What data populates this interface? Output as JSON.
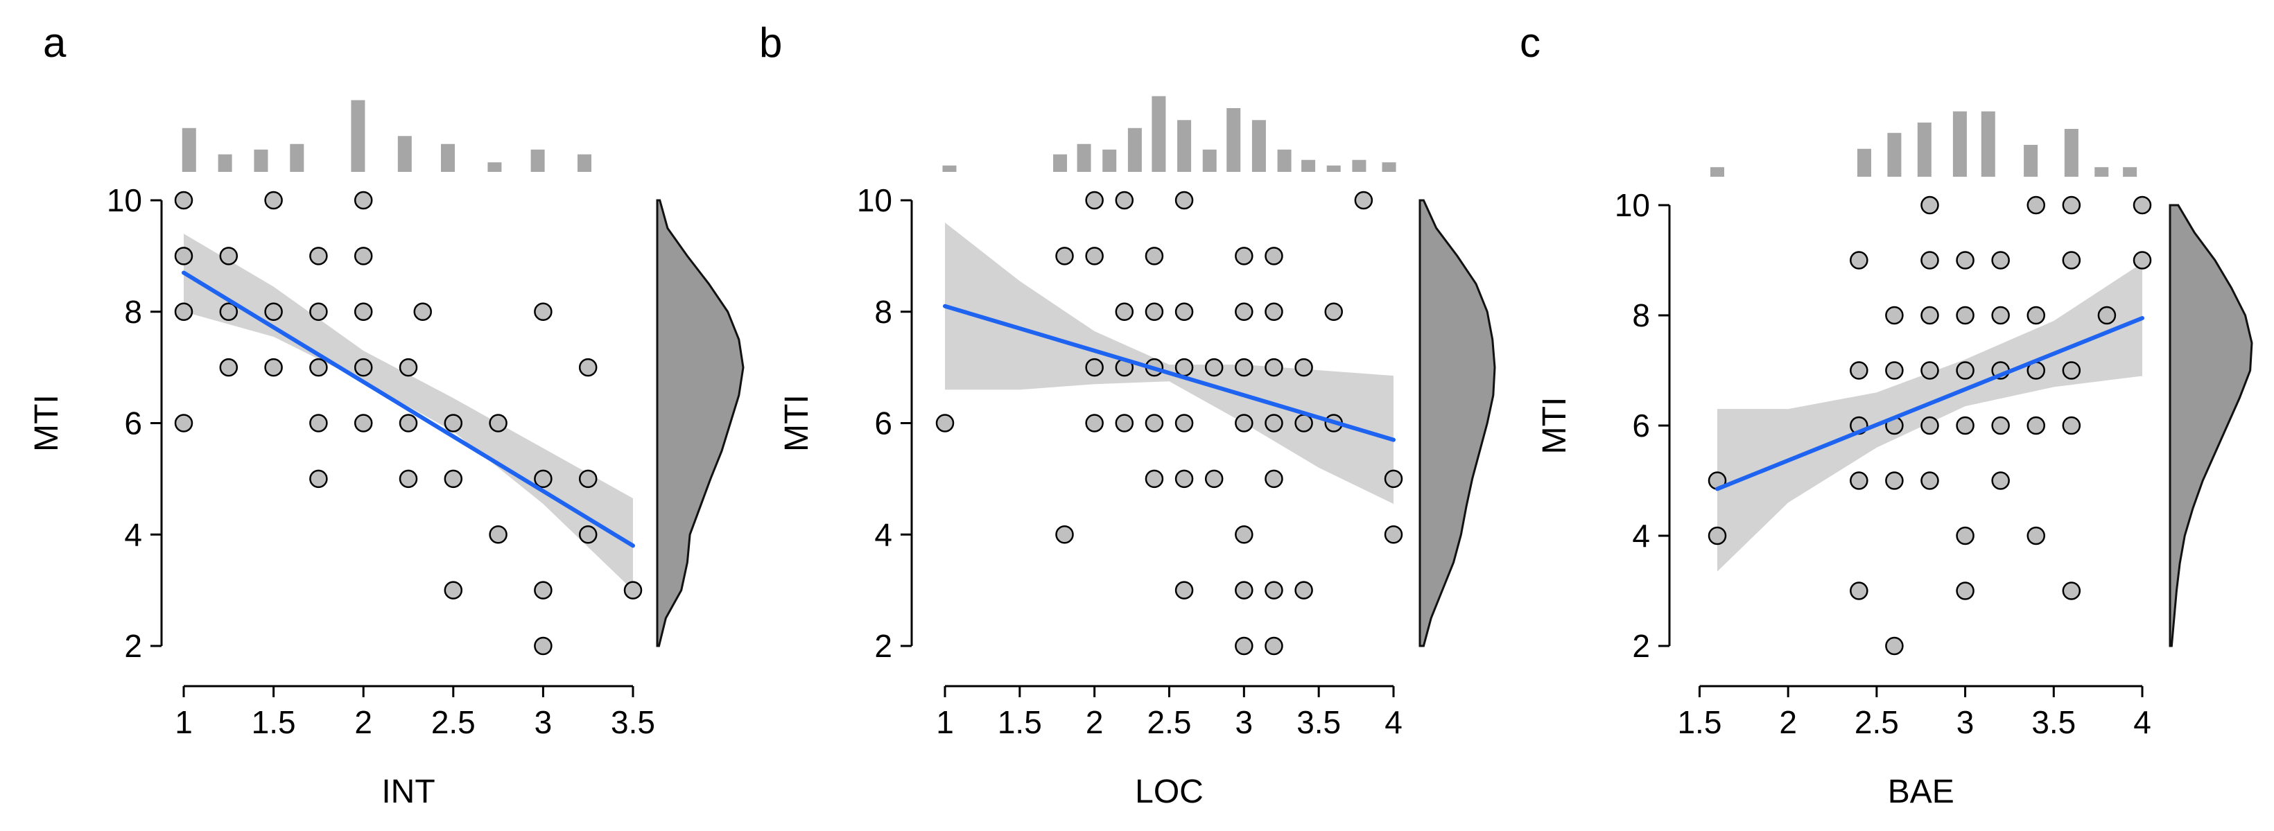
{
  "chart_data": [
    {
      "type": "scatter",
      "panel_label": "a",
      "xlabel": "INT",
      "ylabel": "MTI",
      "xlim": [
        1,
        3.5
      ],
      "ylim": [
        2,
        10
      ],
      "xticks": [
        1,
        1.5,
        2,
        2.5,
        3,
        3.5
      ],
      "xtick_labels": [
        "1",
        "1.5",
        "2",
        "2.5",
        "3",
        "3.5"
      ],
      "yticks": [
        2,
        4,
        6,
        8,
        10
      ],
      "ytick_labels": [
        "2",
        "4",
        "6",
        "8",
        "10"
      ],
      "points": [
        [
          1,
          10
        ],
        [
          1,
          9
        ],
        [
          1,
          8
        ],
        [
          1,
          6
        ],
        [
          1.25,
          9
        ],
        [
          1.25,
          8
        ],
        [
          1.25,
          7
        ],
        [
          1.5,
          10
        ],
        [
          1.5,
          8
        ],
        [
          1.5,
          7
        ],
        [
          1.75,
          9
        ],
        [
          1.75,
          8
        ],
        [
          1.75,
          7
        ],
        [
          1.75,
          6
        ],
        [
          1.75,
          5
        ],
        [
          2,
          10
        ],
        [
          2,
          9
        ],
        [
          2,
          8
        ],
        [
          2,
          7
        ],
        [
          2,
          6
        ],
        [
          2.25,
          7
        ],
        [
          2.25,
          6
        ],
        [
          2.25,
          5
        ],
        [
          2.33,
          8
        ],
        [
          2.5,
          6
        ],
        [
          2.5,
          5
        ],
        [
          2.5,
          3
        ],
        [
          2.75,
          6
        ],
        [
          2.75,
          4
        ],
        [
          3,
          8
        ],
        [
          3,
          5
        ],
        [
          3,
          3
        ],
        [
          3,
          2
        ],
        [
          3.25,
          7
        ],
        [
          3.25,
          5
        ],
        [
          3.25,
          4
        ],
        [
          3.5,
          3
        ]
      ],
      "fit": {
        "x0": 1,
        "y0": 8.7,
        "x1": 3.5,
        "y1": 3.8
      },
      "ci_band": {
        "x": [
          1,
          1.5,
          2,
          2.5,
          3,
          3.5
        ],
        "lower": [
          8.0,
          7.55,
          6.75,
          5.85,
          4.55,
          3.0
        ],
        "upper": [
          9.4,
          8.45,
          7.3,
          6.45,
          5.55,
          4.65
        ]
      },
      "top_hist": {
        "centers": [
          1.03,
          1.23,
          1.43,
          1.63,
          1.97,
          2.23,
          2.47,
          2.73,
          2.97,
          3.23
        ],
        "heights": [
          0.55,
          0.22,
          0.28,
          0.35,
          0.9,
          0.45,
          0.35,
          0.12,
          0.28,
          0.22
        ]
      },
      "right_density": {
        "y": [
          2,
          2.5,
          3,
          3.5,
          4,
          4.5,
          5,
          5.5,
          6,
          6.5,
          7,
          7.5,
          8,
          8.5,
          9,
          9.5,
          10
        ],
        "d": [
          0.02,
          0.1,
          0.28,
          0.35,
          0.38,
          0.5,
          0.62,
          0.75,
          0.85,
          0.95,
          1.0,
          0.95,
          0.82,
          0.6,
          0.35,
          0.12,
          0.03
        ]
      }
    },
    {
      "type": "scatter",
      "panel_label": "b",
      "xlabel": "LOC",
      "ylabel": "MTI",
      "xlim": [
        1,
        4
      ],
      "ylim": [
        2,
        10
      ],
      "xticks": [
        1,
        1.5,
        2,
        2.5,
        3,
        3.5,
        4
      ],
      "xtick_labels": [
        "1",
        "1.5",
        "2",
        "2.5",
        "3",
        "3.5",
        "4"
      ],
      "yticks": [
        2,
        4,
        6,
        8,
        10
      ],
      "ytick_labels": [
        "2",
        "4",
        "6",
        "8",
        "10"
      ],
      "points": [
        [
          1,
          6
        ],
        [
          1.8,
          9
        ],
        [
          1.8,
          4
        ],
        [
          2,
          10
        ],
        [
          2,
          9
        ],
        [
          2,
          7
        ],
        [
          2,
          6
        ],
        [
          2.2,
          10
        ],
        [
          2.2,
          8
        ],
        [
          2.2,
          7
        ],
        [
          2.2,
          6
        ],
        [
          2.4,
          9
        ],
        [
          2.4,
          8
        ],
        [
          2.4,
          7
        ],
        [
          2.4,
          6
        ],
        [
          2.4,
          5
        ],
        [
          2.6,
          10
        ],
        [
          2.6,
          8
        ],
        [
          2.6,
          7
        ],
        [
          2.6,
          6
        ],
        [
          2.6,
          5
        ],
        [
          2.6,
          3
        ],
        [
          2.8,
          7
        ],
        [
          2.8,
          5
        ],
        [
          3,
          9
        ],
        [
          3,
          8
        ],
        [
          3,
          7
        ],
        [
          3,
          6
        ],
        [
          3,
          4
        ],
        [
          3,
          3
        ],
        [
          3,
          2
        ],
        [
          3.2,
          9
        ],
        [
          3.2,
          8
        ],
        [
          3.2,
          7
        ],
        [
          3.2,
          6
        ],
        [
          3.2,
          5
        ],
        [
          3.2,
          3
        ],
        [
          3.2,
          2
        ],
        [
          3.4,
          7
        ],
        [
          3.4,
          6
        ],
        [
          3.4,
          3
        ],
        [
          3.6,
          8
        ],
        [
          3.6,
          6
        ],
        [
          3.8,
          10
        ],
        [
          4,
          5
        ],
        [
          4,
          4
        ]
      ],
      "fit": {
        "x0": 1,
        "y0": 8.1,
        "x1": 4,
        "y1": 5.7
      },
      "ci_band": {
        "x": [
          1,
          1.5,
          2,
          2.5,
          3,
          3.5,
          4
        ],
        "lower": [
          6.6,
          6.6,
          6.7,
          6.75,
          6.0,
          5.2,
          4.55
        ],
        "upper": [
          9.6,
          8.55,
          7.65,
          7.05,
          7.05,
          6.95,
          6.85
        ]
      },
      "top_hist": {
        "centers": [
          1.03,
          1.77,
          1.93,
          2.1,
          2.27,
          2.43,
          2.6,
          2.77,
          2.93,
          3.1,
          3.27,
          3.43,
          3.6,
          3.77,
          3.97
        ],
        "heights": [
          0.08,
          0.22,
          0.35,
          0.28,
          0.55,
          0.95,
          0.65,
          0.28,
          0.8,
          0.65,
          0.28,
          0.15,
          0.08,
          0.15,
          0.12
        ]
      },
      "right_density": {
        "y": [
          2,
          2.5,
          3,
          3.5,
          4,
          4.5,
          5,
          5.5,
          6,
          6.5,
          7,
          7.5,
          8,
          8.5,
          9,
          9.5,
          10
        ],
        "d": [
          0.05,
          0.15,
          0.3,
          0.45,
          0.55,
          0.62,
          0.7,
          0.8,
          0.9,
          0.98,
          1.0,
          0.97,
          0.9,
          0.75,
          0.5,
          0.22,
          0.05
        ]
      }
    },
    {
      "type": "scatter",
      "panel_label": "c",
      "xlabel": "BAE",
      "ylabel": "MTI",
      "xlim": [
        1.6,
        4
      ],
      "ylim": [
        2,
        10
      ],
      "xticks": [
        1.5,
        2,
        2.5,
        3,
        3.5,
        4
      ],
      "xtick_labels": [
        "1.5",
        "2",
        "2.5",
        "3",
        "3.5",
        "4"
      ],
      "yticks": [
        2,
        4,
        6,
        8,
        10
      ],
      "ytick_labels": [
        "2",
        "4",
        "6",
        "8",
        "10"
      ],
      "points": [
        [
          1.6,
          5
        ],
        [
          1.6,
          4
        ],
        [
          2.4,
          9
        ],
        [
          2.4,
          7
        ],
        [
          2.4,
          6
        ],
        [
          2.4,
          5
        ],
        [
          2.4,
          3
        ],
        [
          2.6,
          8
        ],
        [
          2.6,
          7
        ],
        [
          2.6,
          6
        ],
        [
          2.6,
          5
        ],
        [
          2.6,
          2
        ],
        [
          2.8,
          10
        ],
        [
          2.8,
          9
        ],
        [
          2.8,
          8
        ],
        [
          2.8,
          7
        ],
        [
          2.8,
          6
        ],
        [
          2.8,
          5
        ],
        [
          3,
          9
        ],
        [
          3,
          8
        ],
        [
          3,
          7
        ],
        [
          3,
          6
        ],
        [
          3,
          4
        ],
        [
          3,
          3
        ],
        [
          3.2,
          9
        ],
        [
          3.2,
          8
        ],
        [
          3.2,
          7
        ],
        [
          3.2,
          6
        ],
        [
          3.2,
          5
        ],
        [
          3.4,
          10
        ],
        [
          3.4,
          8
        ],
        [
          3.4,
          7
        ],
        [
          3.4,
          6
        ],
        [
          3.4,
          4
        ],
        [
          3.6,
          10
        ],
        [
          3.6,
          9
        ],
        [
          3.6,
          7
        ],
        [
          3.6,
          6
        ],
        [
          3.6,
          3
        ],
        [
          3.8,
          8
        ],
        [
          4,
          10
        ],
        [
          4,
          9
        ]
      ],
      "fit": {
        "x0": 1.6,
        "y0": 4.85,
        "x1": 4,
        "y1": 7.95
      },
      "ci_band": {
        "x": [
          1.6,
          2,
          2.5,
          3,
          3.5,
          4
        ],
        "lower": [
          3.35,
          4.6,
          5.6,
          6.35,
          6.7,
          6.9
        ],
        "upper": [
          6.3,
          6.3,
          6.6,
          7.2,
          7.9,
          8.95
        ]
      },
      "top_hist": {
        "centers": [
          1.6,
          2.43,
          2.6,
          2.77,
          2.97,
          3.13,
          3.37,
          3.6,
          3.77,
          3.93
        ],
        "heights": [
          0.12,
          0.35,
          0.55,
          0.68,
          0.82,
          0.82,
          0.4,
          0.6,
          0.12,
          0.12
        ]
      },
      "right_density": {
        "y": [
          2,
          2.5,
          3,
          3.5,
          4,
          4.5,
          5,
          5.5,
          6,
          6.5,
          7,
          7.5,
          8,
          8.5,
          9,
          9.5,
          10
        ],
        "d": [
          0.02,
          0.05,
          0.08,
          0.12,
          0.18,
          0.28,
          0.4,
          0.55,
          0.7,
          0.85,
          0.98,
          1.0,
          0.92,
          0.75,
          0.55,
          0.3,
          0.1
        ]
      }
    }
  ]
}
